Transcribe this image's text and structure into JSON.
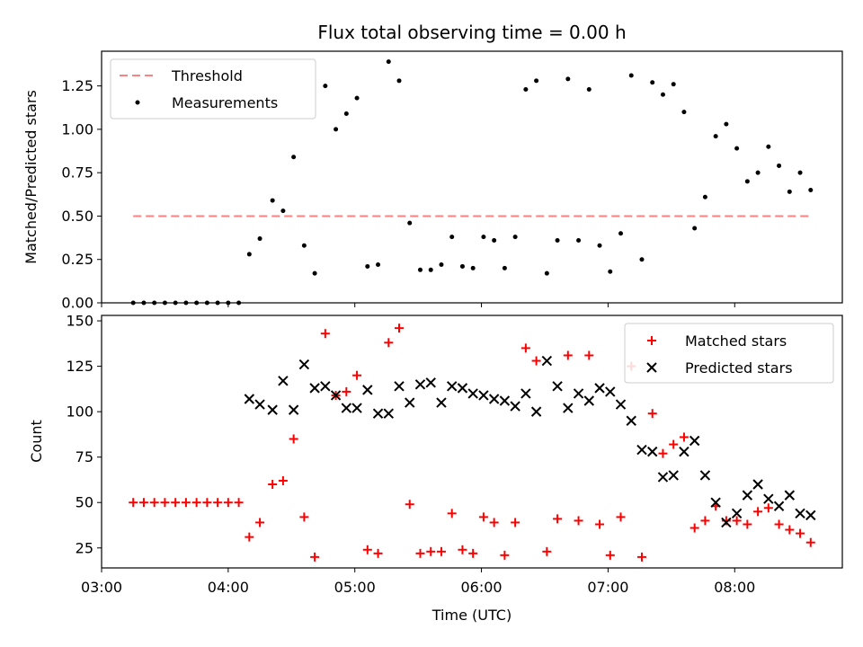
{
  "title": "Flux total observing time = 0.00 h",
  "chart_data": [
    {
      "type": "scatter",
      "ylabel": "Matched/Predicted stars",
      "xlim": [
        "03:00",
        "08:51"
      ],
      "ylim": [
        0,
        1.45
      ],
      "yticks": [
        "0.00",
        "0.25",
        "0.50",
        "0.75",
        "1.00",
        "1.25"
      ],
      "legend_position": "top-left",
      "threshold": {
        "name": "Threshold",
        "value": 0.5,
        "x_start": "03:15",
        "x_end": "08:36",
        "color": "#ff8080",
        "style": "dashed"
      },
      "series": [
        {
          "name": "Measurements",
          "color": "#000000",
          "marker": "dot",
          "points": [
            [
              "03:15",
              0
            ],
            [
              "03:20",
              0
            ],
            [
              "03:25",
              0
            ],
            [
              "03:30",
              0
            ],
            [
              "03:35",
              0
            ],
            [
              "03:40",
              0
            ],
            [
              "03:45",
              0
            ],
            [
              "03:50",
              0
            ],
            [
              "03:55",
              0
            ],
            [
              "04:00",
              0
            ],
            [
              "04:05",
              0
            ],
            [
              "04:10",
              0.28
            ],
            [
              "04:15",
              0.37
            ],
            [
              "04:21",
              0.59
            ],
            [
              "04:26",
              0.53
            ],
            [
              "04:31",
              0.84
            ],
            [
              "04:36",
              0.33
            ],
            [
              "04:41",
              0.17
            ],
            [
              "04:46",
              1.25
            ],
            [
              "04:51",
              1.0
            ],
            [
              "04:56",
              1.09
            ],
            [
              "05:01",
              1.18
            ],
            [
              "05:06",
              0.21
            ],
            [
              "05:11",
              0.22
            ],
            [
              "05:16",
              1.39
            ],
            [
              "05:21",
              1.28
            ],
            [
              "05:26",
              0.46
            ],
            [
              "05:31",
              0.19
            ],
            [
              "05:36",
              0.19
            ],
            [
              "05:41",
              0.22
            ],
            [
              "05:46",
              0.38
            ],
            [
              "05:51",
              0.21
            ],
            [
              "05:56",
              0.2
            ],
            [
              "06:01",
              0.38
            ],
            [
              "06:06",
              0.36
            ],
            [
              "06:11",
              0.2
            ],
            [
              "06:16",
              0.38
            ],
            [
              "06:21",
              1.23
            ],
            [
              "06:26",
              1.28
            ],
            [
              "06:31",
              0.17
            ],
            [
              "06:36",
              0.36
            ],
            [
              "06:41",
              1.29
            ],
            [
              "06:46",
              0.36
            ],
            [
              "06:51",
              1.23
            ],
            [
              "06:56",
              0.33
            ],
            [
              "07:01",
              0.18
            ],
            [
              "07:06",
              0.4
            ],
            [
              "07:11",
              1.31
            ],
            [
              "07:16",
              0.25
            ],
            [
              "07:21",
              1.27
            ],
            [
              "07:26",
              1.2
            ],
            [
              "07:31",
              1.26
            ],
            [
              "07:36",
              1.1
            ],
            [
              "07:41",
              0.43
            ],
            [
              "07:46",
              0.61
            ],
            [
              "07:51",
              0.96
            ],
            [
              "07:56",
              1.03
            ],
            [
              "08:01",
              0.89
            ],
            [
              "08:06",
              0.7
            ],
            [
              "08:11",
              0.75
            ],
            [
              "08:16",
              0.9
            ],
            [
              "08:21",
              0.79
            ],
            [
              "08:26",
              0.64
            ],
            [
              "08:31",
              0.75
            ],
            [
              "08:36",
              0.65
            ]
          ]
        }
      ]
    },
    {
      "type": "scatter",
      "xlabel": "Time (UTC)",
      "ylabel": "Count",
      "xlim": [
        "03:00",
        "08:51"
      ],
      "ylim": [
        14,
        153
      ],
      "xticks": [
        "03:00",
        "04:00",
        "05:00",
        "06:00",
        "07:00",
        "08:00"
      ],
      "yticks": [
        "25",
        "50",
        "75",
        "100",
        "125",
        "150"
      ],
      "legend_position": "top-right",
      "series": [
        {
          "name": "Matched stars",
          "color": "#ff0000",
          "marker": "plus",
          "points": [
            [
              "03:15",
              50
            ],
            [
              "03:20",
              50
            ],
            [
              "03:25",
              50
            ],
            [
              "03:30",
              50
            ],
            [
              "03:35",
              50
            ],
            [
              "03:40",
              50
            ],
            [
              "03:45",
              50
            ],
            [
              "03:50",
              50
            ],
            [
              "03:55",
              50
            ],
            [
              "04:00",
              50
            ],
            [
              "04:05",
              50
            ],
            [
              "04:10",
              31
            ],
            [
              "04:15",
              39
            ],
            [
              "04:21",
              60
            ],
            [
              "04:26",
              62
            ],
            [
              "04:31",
              85
            ],
            [
              "04:36",
              42
            ],
            [
              "04:41",
              20
            ],
            [
              "04:46",
              143
            ],
            [
              "04:51",
              109
            ],
            [
              "04:56",
              111
            ],
            [
              "05:01",
              120
            ],
            [
              "05:06",
              24
            ],
            [
              "05:11",
              22
            ],
            [
              "05:16",
              138
            ],
            [
              "05:21",
              146
            ],
            [
              "05:26",
              49
            ],
            [
              "05:31",
              22
            ],
            [
              "05:36",
              23
            ],
            [
              "05:41",
              23
            ],
            [
              "05:46",
              44
            ],
            [
              "05:51",
              24
            ],
            [
              "05:56",
              22
            ],
            [
              "06:01",
              42
            ],
            [
              "06:06",
              39
            ],
            [
              "06:11",
              21
            ],
            [
              "06:16",
              39
            ],
            [
              "06:21",
              135
            ],
            [
              "06:26",
              128
            ],
            [
              "06:31",
              23
            ],
            [
              "06:36",
              41
            ],
            [
              "06:41",
              131
            ],
            [
              "06:46",
              40
            ],
            [
              "06:51",
              131
            ],
            [
              "06:56",
              38
            ],
            [
              "07:01",
              21
            ],
            [
              "07:06",
              42
            ],
            [
              "07:11",
              125
            ],
            [
              "07:16",
              20
            ],
            [
              "07:21",
              99
            ],
            [
              "07:26",
              77
            ],
            [
              "07:31",
              82
            ],
            [
              "07:36",
              86
            ],
            [
              "07:41",
              36
            ],
            [
              "07:46",
              40
            ],
            [
              "07:51",
              48
            ],
            [
              "07:56",
              40
            ],
            [
              "08:01",
              40
            ],
            [
              "08:06",
              38
            ],
            [
              "08:11",
              45
            ],
            [
              "08:16",
              47
            ],
            [
              "08:21",
              38
            ],
            [
              "08:26",
              35
            ],
            [
              "08:31",
              33
            ],
            [
              "08:36",
              28
            ]
          ]
        },
        {
          "name": "Predicted stars",
          "color": "#000000",
          "marker": "x",
          "points": [
            [
              "04:10",
              107
            ],
            [
              "04:15",
              104
            ],
            [
              "04:21",
              101
            ],
            [
              "04:26",
              117
            ],
            [
              "04:31",
              101
            ],
            [
              "04:36",
              126
            ],
            [
              "04:41",
              113
            ],
            [
              "04:46",
              114
            ],
            [
              "04:51",
              109
            ],
            [
              "04:56",
              102
            ],
            [
              "05:01",
              102
            ],
            [
              "05:06",
              112
            ],
            [
              "05:11",
              99
            ],
            [
              "05:16",
              99
            ],
            [
              "05:21",
              114
            ],
            [
              "05:26",
              105
            ],
            [
              "05:31",
              115
            ],
            [
              "05:36",
              116
            ],
            [
              "05:41",
              105
            ],
            [
              "05:46",
              114
            ],
            [
              "05:51",
              113
            ],
            [
              "05:56",
              110
            ],
            [
              "06:01",
              109
            ],
            [
              "06:06",
              107
            ],
            [
              "06:11",
              106
            ],
            [
              "06:16",
              103
            ],
            [
              "06:21",
              110
            ],
            [
              "06:26",
              100
            ],
            [
              "06:31",
              128
            ],
            [
              "06:36",
              114
            ],
            [
              "06:41",
              102
            ],
            [
              "06:46",
              110
            ],
            [
              "06:51",
              106
            ],
            [
              "06:56",
              113
            ],
            [
              "07:01",
              111
            ],
            [
              "07:06",
              104
            ],
            [
              "07:11",
              95
            ],
            [
              "07:16",
              79
            ],
            [
              "07:21",
              78
            ],
            [
              "07:26",
              64
            ],
            [
              "07:31",
              65
            ],
            [
              "07:36",
              78
            ],
            [
              "07:41",
              84
            ],
            [
              "07:46",
              65
            ],
            [
              "07:51",
              50
            ],
            [
              "07:56",
              39
            ],
            [
              "08:01",
              44
            ],
            [
              "08:06",
              54
            ],
            [
              "08:11",
              60
            ],
            [
              "08:16",
              52
            ],
            [
              "08:21",
              48
            ],
            [
              "08:26",
              54
            ],
            [
              "08:31",
              44
            ],
            [
              "08:36",
              43
            ]
          ]
        }
      ]
    }
  ]
}
